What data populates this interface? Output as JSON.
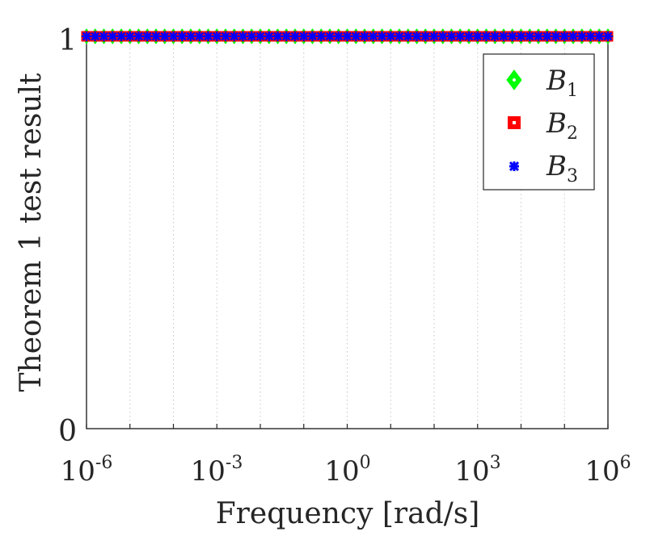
{
  "chart_data": {
    "type": "scatter",
    "title": "",
    "xlabel": "Frequency [rad/s]",
    "ylabel": "Theorem 1 test result",
    "x_scale": "log",
    "xlim": [
      1e-06,
      1000000.0
    ],
    "ylim": [
      0,
      1
    ],
    "x_ticks": [
      {
        "base": "10",
        "exp": "-6"
      },
      {
        "base": "10",
        "exp": "-3"
      },
      {
        "base": "10",
        "exp": "0"
      },
      {
        "base": "10",
        "exp": "3"
      },
      {
        "base": "10",
        "exp": "6"
      }
    ],
    "y_ticks": [
      "0",
      "1"
    ],
    "grid": "vertical-minor-dotted",
    "legend_position": "top-right",
    "num_points": 61,
    "series": [
      {
        "name": "B",
        "subscript": "1",
        "marker": "diamond",
        "color": "#00ff00",
        "value": 1
      },
      {
        "name": "B",
        "subscript": "2",
        "marker": "square",
        "color": "#ff0000",
        "value": 1
      },
      {
        "name": "B",
        "subscript": "3",
        "marker": "asterisk",
        "color": "#0000ff",
        "value": 1
      }
    ]
  }
}
